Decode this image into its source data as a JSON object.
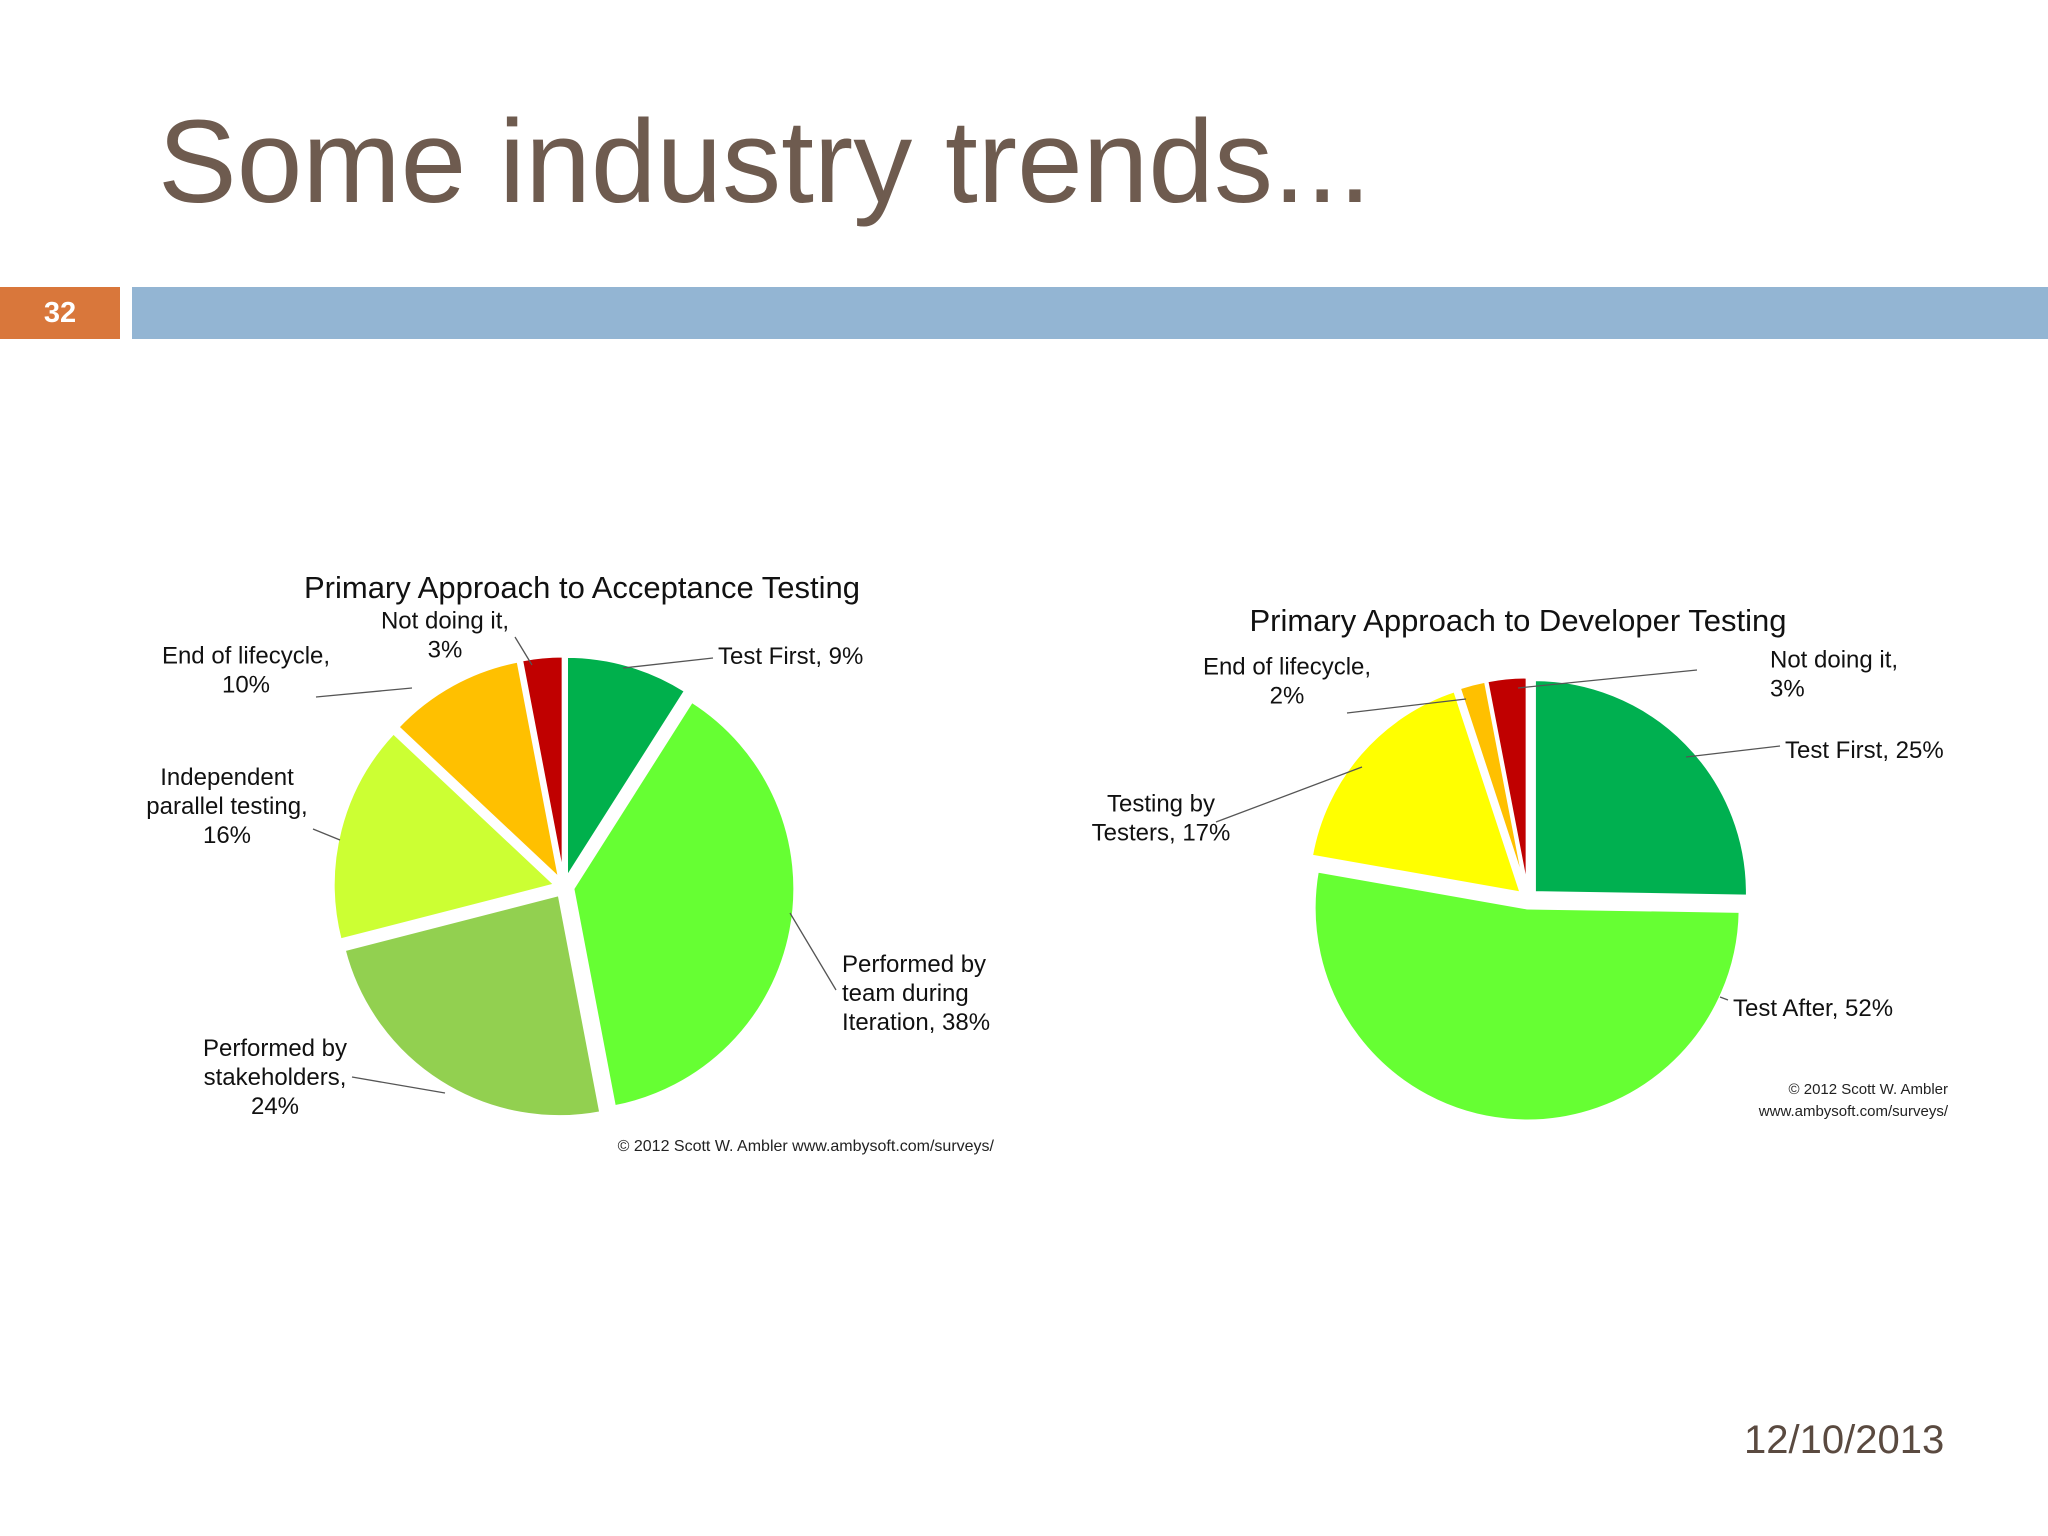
{
  "slide": {
    "title": "Some industry trends...",
    "number": "32",
    "date": "12/10/2013"
  },
  "colors": {
    "title_text": "#6e5b4f",
    "number_badge": "#d9773b",
    "header_bar": "#93b5d3"
  },
  "chart_data": [
    {
      "type": "pie",
      "title": "Primary Approach to Acceptance Testing",
      "copyright": "© 2012 Scott W. Ambler www.ambysoft.com/surveys/",
      "slices": [
        {
          "label": [
            "Test First, 9%"
          ],
          "value": 9,
          "color": "#00b04c"
        },
        {
          "label": [
            "Performed by",
            "team during",
            "Iteration, 38%"
          ],
          "value": 38,
          "color": "#66ff33"
        },
        {
          "label": [
            "Performed by",
            "stakeholders,",
            "24%"
          ],
          "value": 24,
          "color": "#92d050"
        },
        {
          "label": [
            "Independent",
            "parallel testing,",
            "16%"
          ],
          "value": 16,
          "color": "#ccff33"
        },
        {
          "label": [
            "End of lifecycle,",
            "10%"
          ],
          "value": 10,
          "color": "#ffc000"
        },
        {
          "label": [
            "Not doing it,",
            "3%"
          ],
          "value": 3,
          "color": "#c00000"
        }
      ]
    },
    {
      "type": "pie",
      "title": "Primary Approach to Developer Testing",
      "copyright": [
        "© 2012 Scott W. Ambler",
        "www.ambysoft.com/surveys/"
      ],
      "slices": [
        {
          "label": [
            "Test First, 25%"
          ],
          "value": 25,
          "color": "#00b050"
        },
        {
          "label": [
            "Test After, 52%"
          ],
          "value": 52,
          "color": "#66ff33"
        },
        {
          "label": [
            "Testing by",
            "Testers, 17%"
          ],
          "value": 17,
          "color": "#ffff00"
        },
        {
          "label": [
            "End of lifecycle,",
            "2%"
          ],
          "value": 2,
          "color": "#ffc000"
        },
        {
          "label": [
            "Not doing it,",
            "3%"
          ],
          "value": 3,
          "color": "#c00000"
        }
      ]
    }
  ]
}
